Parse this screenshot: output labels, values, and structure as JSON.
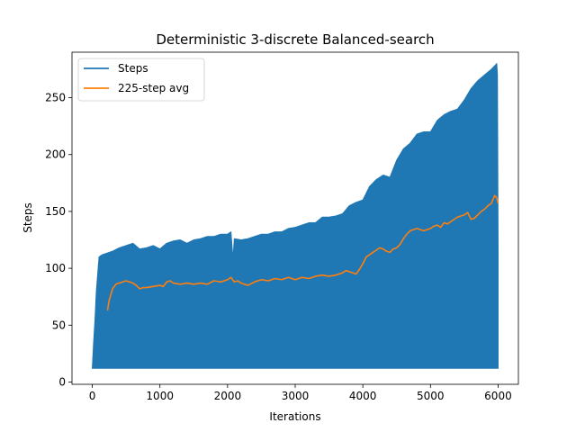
{
  "chart_data": {
    "type": "line",
    "title": "Deterministic 3-discrete Balanced-search",
    "xlabel": "Iterations",
    "ylabel": "Steps",
    "xlim": [
      -300,
      6300
    ],
    "ylim": [
      -2,
      290
    ],
    "xticks": [
      0,
      1000,
      2000,
      3000,
      4000,
      5000,
      6000
    ],
    "yticks": [
      0,
      50,
      100,
      150,
      200,
      250
    ],
    "legend_position": "top-left",
    "colors": {
      "steps": "#1f77b4",
      "avg": "#ff7f0e"
    },
    "series": [
      {
        "name": "Steps",
        "kind": "band",
        "low": 12,
        "x": [
          0,
          20,
          40,
          60,
          80,
          100,
          150,
          200,
          300,
          400,
          500,
          600,
          700,
          800,
          900,
          1000,
          1100,
          1200,
          1300,
          1400,
          1500,
          1600,
          1700,
          1800,
          1900,
          2000,
          2050,
          2080,
          2100,
          2200,
          2300,
          2400,
          2500,
          2600,
          2700,
          2800,
          2900,
          3000,
          3100,
          3200,
          3300,
          3400,
          3500,
          3600,
          3700,
          3800,
          3900,
          4000,
          4100,
          4200,
          4300,
          4400,
          4500,
          4600,
          4700,
          4800,
          4900,
          5000,
          5100,
          5200,
          5300,
          5400,
          5500,
          5600,
          5700,
          5800,
          5900,
          5950,
          5980,
          5990,
          6000
        ],
        "high": [
          12,
          35,
          55,
          80,
          95,
          110,
          112,
          113,
          115,
          118,
          120,
          122,
          117,
          118,
          120,
          117,
          122,
          124,
          125,
          122,
          125,
          126,
          128,
          128,
          130,
          130,
          132,
          108,
          126,
          125,
          126,
          128,
          130,
          130,
          132,
          132,
          135,
          136,
          138,
          140,
          140,
          145,
          145,
          146,
          148,
          155,
          158,
          160,
          172,
          178,
          182,
          180,
          195,
          205,
          210,
          218,
          220,
          220,
          230,
          235,
          238,
          240,
          248,
          258,
          265,
          270,
          275,
          278,
          280,
          270,
          118
        ]
      },
      {
        "name": "225-step avg",
        "kind": "line",
        "x": [
          225,
          250,
          300,
          350,
          400,
          450,
          500,
          550,
          600,
          650,
          700,
          750,
          800,
          900,
          1000,
          1050,
          1100,
          1150,
          1200,
          1300,
          1400,
          1500,
          1600,
          1700,
          1800,
          1900,
          2000,
          2050,
          2100,
          2150,
          2200,
          2300,
          2400,
          2500,
          2600,
          2700,
          2800,
          2900,
          3000,
          3100,
          3200,
          3300,
          3400,
          3500,
          3600,
          3700,
          3750,
          3800,
          3900,
          3950,
          4000,
          4050,
          4100,
          4150,
          4200,
          4250,
          4300,
          4350,
          4400,
          4450,
          4500,
          4550,
          4600,
          4650,
          4700,
          4750,
          4800,
          4850,
          4900,
          4950,
          5000,
          5050,
          5100,
          5150,
          5200,
          5250,
          5300,
          5350,
          5400,
          5450,
          5500,
          5550,
          5600,
          5650,
          5700,
          5750,
          5800,
          5850,
          5900,
          5950,
          5980,
          6000
        ],
        "y": [
          63,
          72,
          82,
          86,
          87,
          88,
          89,
          88,
          87,
          85,
          82,
          83,
          83,
          84,
          85,
          84,
          88,
          89,
          87,
          86,
          87,
          86,
          87,
          86,
          89,
          88,
          90,
          92,
          88,
          89,
          87,
          85,
          88,
          90,
          89,
          91,
          90,
          92,
          90,
          92,
          91,
          93,
          94,
          93,
          94,
          96,
          98,
          97,
          95,
          99,
          104,
          110,
          112,
          114,
          116,
          118,
          117,
          115,
          114,
          117,
          118,
          121,
          126,
          130,
          133,
          134,
          135,
          134,
          133,
          134,
          135,
          137,
          138,
          136,
          140,
          139,
          141,
          143,
          145,
          146,
          147,
          149,
          143,
          144,
          147,
          150,
          152,
          155,
          157,
          164,
          162,
          157
        ]
      }
    ]
  }
}
